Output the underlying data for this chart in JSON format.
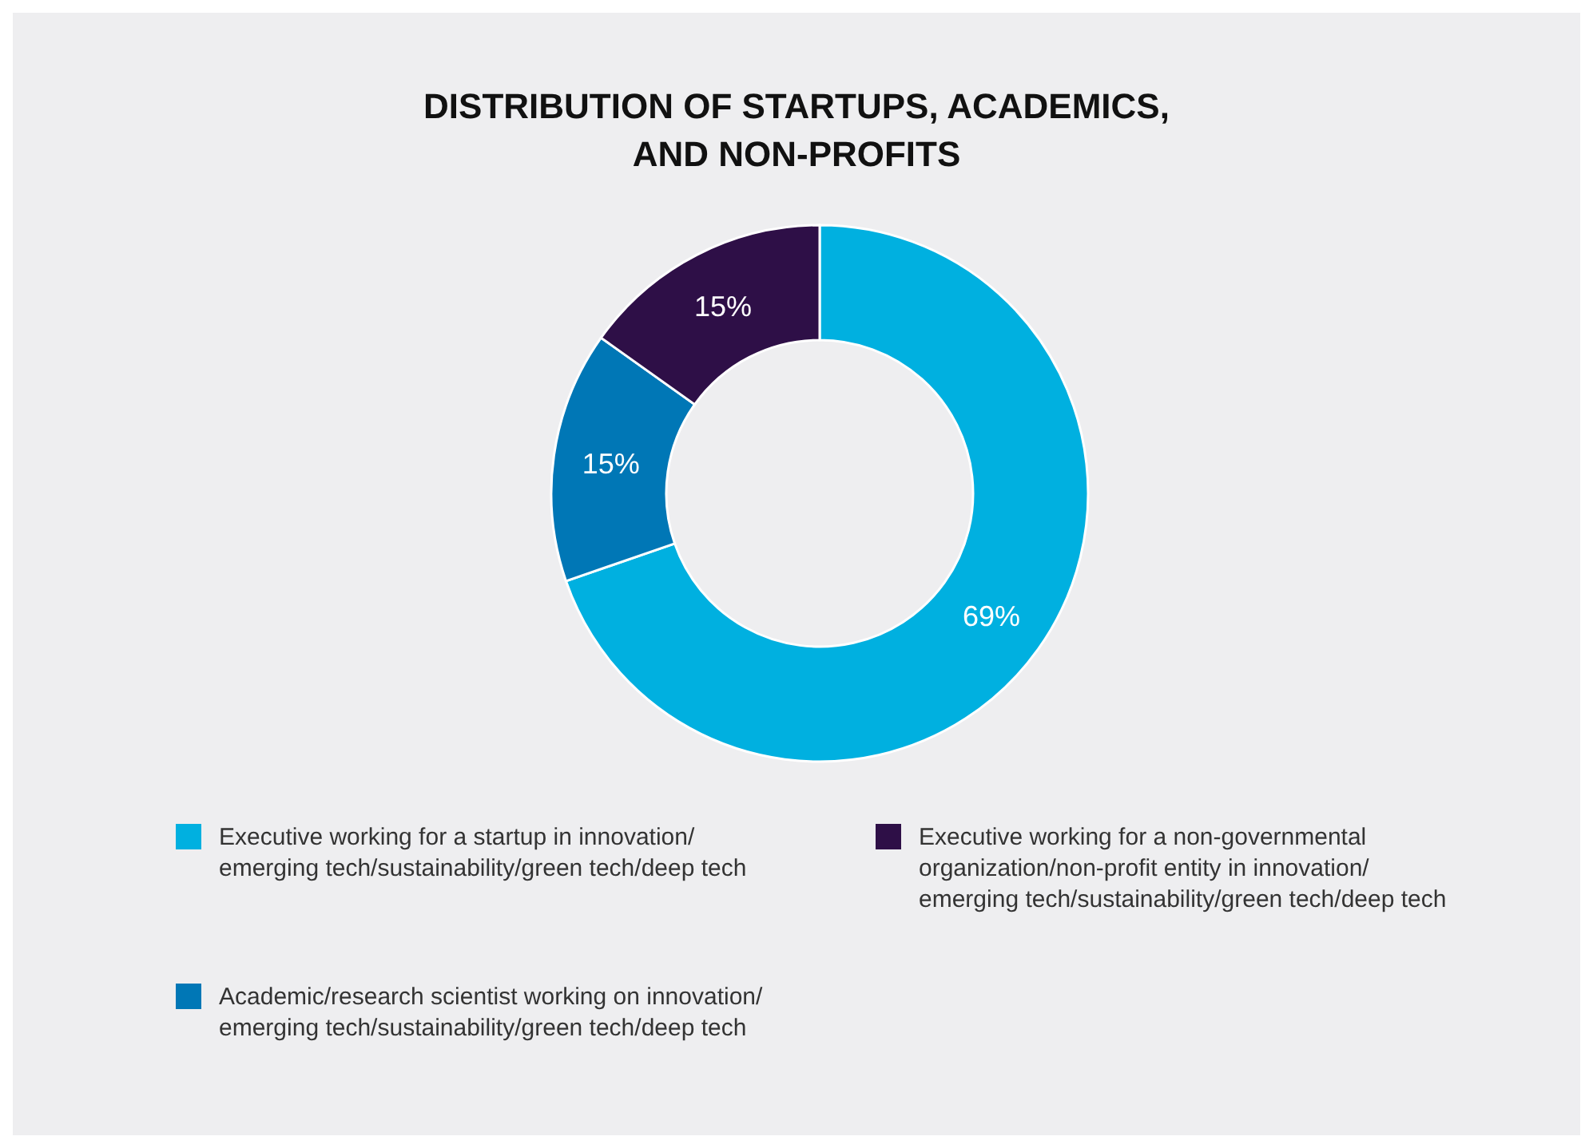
{
  "chart_data": {
    "type": "donut",
    "title": "DISTRIBUTION OF STARTUPS, ACADEMICS, AND NON-PROFITS",
    "categories": [
      "Executive working for a startup in innovation/emerging tech/sustainability/green tech/deep tech",
      "Academic/research scientist working on innovation/emerging tech/sustainability/green tech/deep tech",
      "Executive working for a non-governmental organization/non-profit entity in innovation/emerging tech/sustainability/green tech/deep tech"
    ],
    "values": [
      69,
      15,
      15
    ],
    "colors": [
      "#00b0e0",
      "#0077b6",
      "#2e0f47"
    ],
    "value_labels": [
      "69%",
      "15%",
      "15%"
    ],
    "legend": "bottom"
  }
}
